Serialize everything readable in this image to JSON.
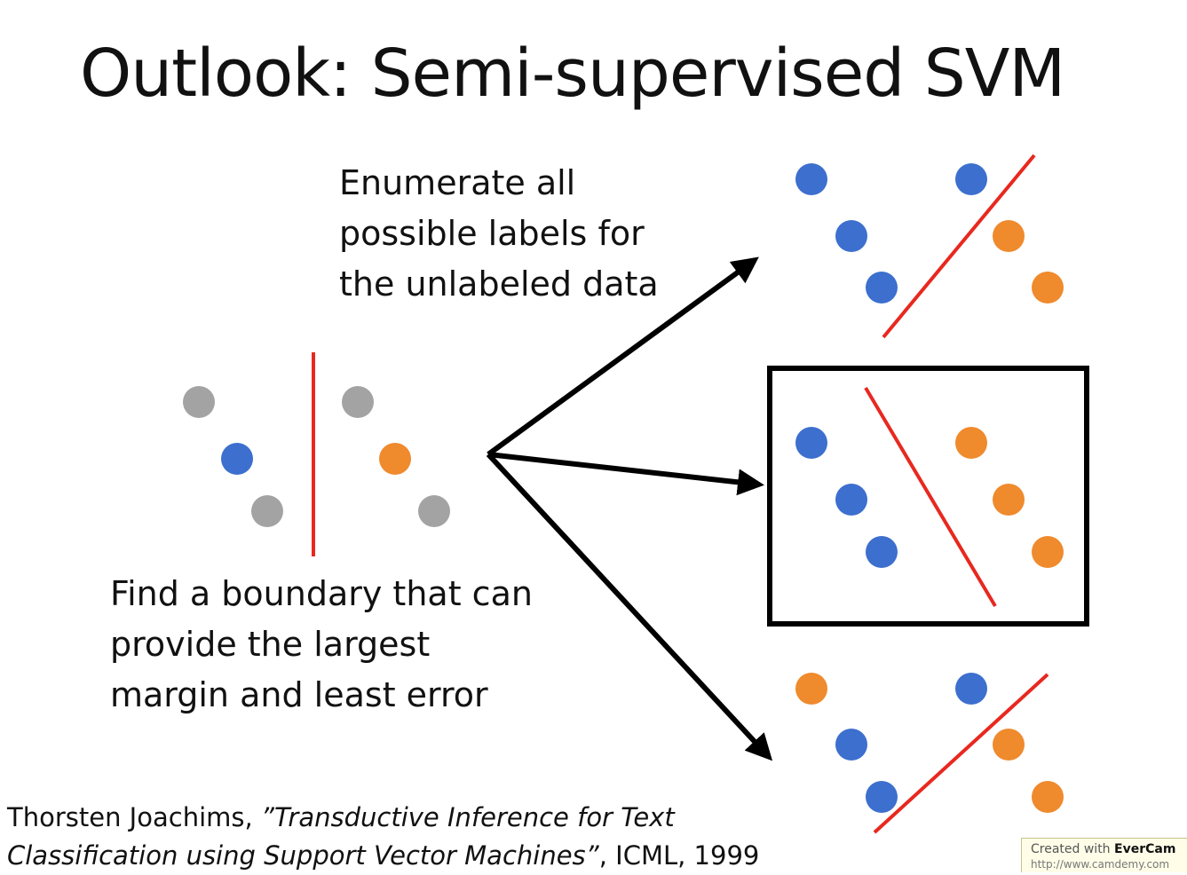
{
  "title": "Outlook: Semi-supervised SVM",
  "enumerate_text": [
    "Enumerate all",
    "possible labels for",
    "the unlabeled data"
  ],
  "find_text": [
    "Find a boundary that can",
    "provide the largest",
    "margin and least error"
  ],
  "citation": {
    "author": "Thorsten Joachims, ",
    "paper_part1": "”Transductive Inference for Text",
    "paper_part2": "Classification using Support Vector Machines”",
    "venue": ", ICML, 1999"
  },
  "watermark": {
    "prefix": "Created with ",
    "brand": "EverCam",
    "url": "http://www.camdemy.com"
  },
  "colors": {
    "labeled_blue": "#3c6fce",
    "labeled_orange": "#ef8a2d",
    "unlabeled_gray": "#a3a3a3",
    "boundary_red": "#e8281f",
    "arrow": "#000000"
  },
  "diagram": {
    "input_points": [
      {
        "label": "unlabeled",
        "color": "gray"
      },
      {
        "label": "unlabeled",
        "color": "gray"
      },
      {
        "label": "labeled",
        "color": "blue"
      },
      {
        "label": "labeled",
        "color": "orange"
      },
      {
        "label": "unlabeled",
        "color": "gray"
      },
      {
        "label": "unlabeled",
        "color": "gray"
      }
    ],
    "candidate_labelings": [
      {
        "selected": false,
        "colors": [
          "blue",
          "blue",
          "blue",
          "blue",
          "orange",
          "orange"
        ]
      },
      {
        "selected": true,
        "colors": [
          "blue",
          "blue",
          "blue",
          "orange",
          "orange",
          "orange"
        ]
      },
      {
        "selected": false,
        "colors": [
          "orange",
          "blue",
          "blue",
          "blue",
          "orange",
          "orange"
        ]
      }
    ]
  }
}
